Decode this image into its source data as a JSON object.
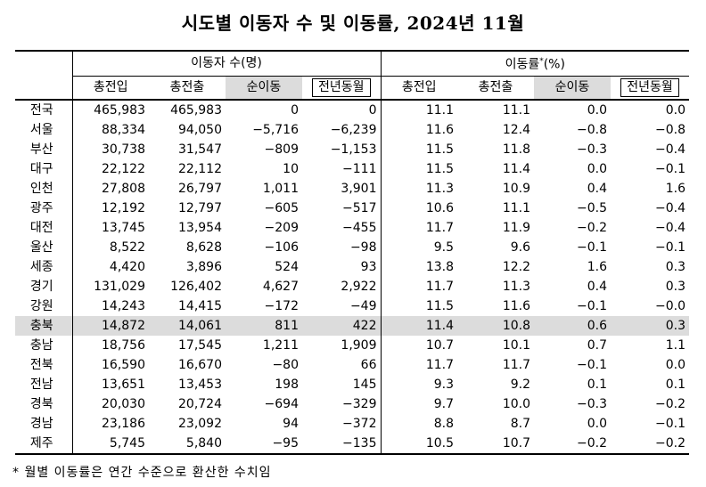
{
  "title": "시도별 이동자 수 및 이동률, 2024년 11월",
  "header": {
    "group_movers": "이동자 수(명)",
    "group_rate": "이동률",
    "group_rate_sup": "*",
    "group_rate_unit": "(%)",
    "in": "총전입",
    "out": "총전출",
    "net": "순이동",
    "yoy": "전년동월"
  },
  "rows": [
    {
      "region": "전국",
      "in": "465,983",
      "out": "465,983",
      "net": "0",
      "yoy": "0",
      "rin": "11.1",
      "rout": "11.1",
      "rnet": "0.0",
      "ryoy": "0.0"
    },
    {
      "region": "서울",
      "in": "88,334",
      "out": "94,050",
      "net": "−5,716",
      "yoy": "−6,239",
      "rin": "11.6",
      "rout": "12.4",
      "rnet": "−0.8",
      "ryoy": "−0.8"
    },
    {
      "region": "부산",
      "in": "30,738",
      "out": "31,547",
      "net": "−809",
      "yoy": "−1,153",
      "rin": "11.5",
      "rout": "11.8",
      "rnet": "−0.3",
      "ryoy": "−0.4"
    },
    {
      "region": "대구",
      "in": "22,122",
      "out": "22,112",
      "net": "10",
      "yoy": "−111",
      "rin": "11.5",
      "rout": "11.4",
      "rnet": "0.0",
      "ryoy": "−0.1"
    },
    {
      "region": "인천",
      "in": "27,808",
      "out": "26,797",
      "net": "1,011",
      "yoy": "3,901",
      "rin": "11.3",
      "rout": "10.9",
      "rnet": "0.4",
      "ryoy": "1.6"
    },
    {
      "region": "광주",
      "in": "12,192",
      "out": "12,797",
      "net": "−605",
      "yoy": "−517",
      "rin": "10.6",
      "rout": "11.1",
      "rnet": "−0.5",
      "ryoy": "−0.4"
    },
    {
      "region": "대전",
      "in": "13,745",
      "out": "13,954",
      "net": "−209",
      "yoy": "−455",
      "rin": "11.7",
      "rout": "11.9",
      "rnet": "−0.2",
      "ryoy": "−0.4"
    },
    {
      "region": "울산",
      "in": "8,522",
      "out": "8,628",
      "net": "−106",
      "yoy": "−98",
      "rin": "9.5",
      "rout": "9.6",
      "rnet": "−0.1",
      "ryoy": "−0.1"
    },
    {
      "region": "세종",
      "in": "4,420",
      "out": "3,896",
      "net": "524",
      "yoy": "93",
      "rin": "13.8",
      "rout": "12.2",
      "rnet": "1.6",
      "ryoy": "0.3"
    },
    {
      "region": "경기",
      "in": "131,029",
      "out": "126,402",
      "net": "4,627",
      "yoy": "2,922",
      "rin": "11.7",
      "rout": "11.3",
      "rnet": "0.4",
      "ryoy": "0.3"
    },
    {
      "region": "강원",
      "in": "14,243",
      "out": "14,415",
      "net": "−172",
      "yoy": "−49",
      "rin": "11.5",
      "rout": "11.6",
      "rnet": "−0.1",
      "ryoy": "−0.0"
    },
    {
      "region": "충북",
      "in": "14,872",
      "out": "14,061",
      "net": "811",
      "yoy": "422",
      "rin": "11.4",
      "rout": "10.8",
      "rnet": "0.6",
      "ryoy": "0.3",
      "highlight": true
    },
    {
      "region": "충남",
      "in": "18,756",
      "out": "17,545",
      "net": "1,211",
      "yoy": "1,909",
      "rin": "10.7",
      "rout": "10.1",
      "rnet": "0.7",
      "ryoy": "1.1"
    },
    {
      "region": "전북",
      "in": "16,590",
      "out": "16,670",
      "net": "−80",
      "yoy": "66",
      "rin": "11.7",
      "rout": "11.7",
      "rnet": "−0.1",
      "ryoy": "0.0"
    },
    {
      "region": "전남",
      "in": "13,651",
      "out": "13,453",
      "net": "198",
      "yoy": "145",
      "rin": "9.3",
      "rout": "9.2",
      "rnet": "0.1",
      "ryoy": "0.1"
    },
    {
      "region": "경북",
      "in": "20,030",
      "out": "20,724",
      "net": "−694",
      "yoy": "−329",
      "rin": "9.7",
      "rout": "10.0",
      "rnet": "−0.3",
      "ryoy": "−0.2"
    },
    {
      "region": "경남",
      "in": "23,186",
      "out": "23,092",
      "net": "94",
      "yoy": "−372",
      "rin": "8.8",
      "rout": "8.7",
      "rnet": "0.0",
      "ryoy": "−0.1"
    },
    {
      "region": "제주",
      "in": "5,745",
      "out": "5,840",
      "net": "−95",
      "yoy": "−135",
      "rin": "10.5",
      "rout": "10.7",
      "rnet": "−0.2",
      "ryoy": "−0.2"
    }
  ],
  "footnote": "* 월별 이동률은 연간 수준으로 환산한 수치임"
}
